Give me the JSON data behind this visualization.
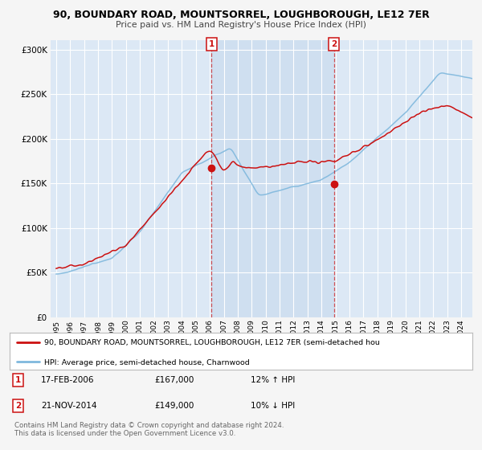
{
  "title": "90, BOUNDARY ROAD, MOUNTSORREL, LOUGHBOROUGH, LE12 7ER",
  "subtitle": "Price paid vs. HM Land Registry's House Price Index (HPI)",
  "ylim": [
    0,
    310000
  ],
  "yticks": [
    0,
    50000,
    100000,
    150000,
    200000,
    250000,
    300000
  ],
  "ytick_labels": [
    "£0",
    "£50K",
    "£100K",
    "£150K",
    "£200K",
    "£250K",
    "£300K"
  ],
  "background_color": "#f5f5f5",
  "plot_bg_color": "#dce8f5",
  "highlight_bg_color": "#cfdff0",
  "grid_color": "#ffffff",
  "red_color": "#cc1111",
  "blue_color": "#7fb8dd",
  "sale1_x": 2006.12,
  "sale1_y": 167000,
  "sale2_x": 2014.88,
  "sale2_y": 149000,
  "xlim_left": 1994.6,
  "xlim_right": 2024.8,
  "legend_line1": "90, BOUNDARY ROAD, MOUNTSORREL, LOUGHBOROUGH, LE12 7ER (semi-detached hou",
  "legend_line2": "HPI: Average price, semi-detached house, Charnwood",
  "footer": "Contains HM Land Registry data © Crown copyright and database right 2024.\nThis data is licensed under the Open Government Licence v3.0.",
  "table": [
    {
      "num": "1",
      "date": "17-FEB-2006",
      "price": "£167,000",
      "hpi": "12% ↑ HPI"
    },
    {
      "num": "2",
      "date": "21-NOV-2014",
      "price": "£149,000",
      "hpi": "10% ↓ HPI"
    }
  ]
}
